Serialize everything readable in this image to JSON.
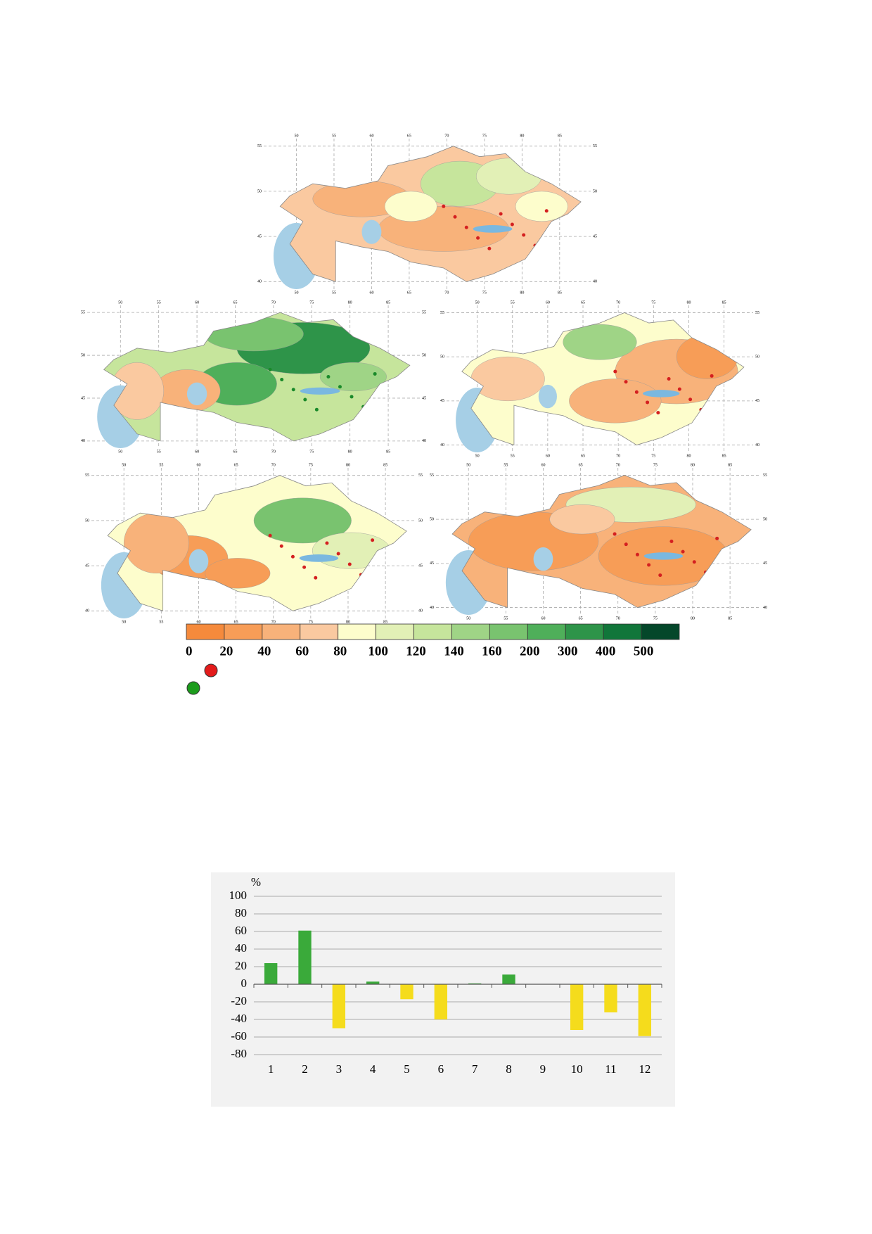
{
  "maps": {
    "grid_labels": {
      "lon": [
        "50",
        "55",
        "60",
        "65",
        "70",
        "75",
        "80",
        "85"
      ],
      "lat": [
        "55",
        "50",
        "45",
        "40"
      ]
    },
    "legend": {
      "labels": [
        "0",
        "20",
        "40",
        "60",
        "80",
        "100",
        "120",
        "140",
        "160",
        "200",
        "300",
        "400",
        "500"
      ],
      "colors": [
        "#f58a3c",
        "#f79d57",
        "#f8b27a",
        "#fac9a0",
        "#fdfdcc",
        "#e2f0b6",
        "#c6e59c",
        "#9fd486",
        "#79c36f",
        "#4faf5a",
        "#2e9449",
        "#11763a",
        "#04472a"
      ]
    }
  },
  "chart_data": {
    "type": "bar",
    "y_label": "%",
    "categories": [
      "1",
      "2",
      "3",
      "4",
      "5",
      "6",
      "7",
      "8",
      "9",
      "10",
      "11",
      "12"
    ],
    "values": [
      24,
      61,
      -50,
      3,
      -17,
      -40,
      1,
      11,
      0,
      -52,
      -32,
      -59
    ],
    "positive_color": "#3aaa3a",
    "negative_color": "#f5dc1c",
    "ylim": [
      -80,
      100
    ],
    "yticks": [
      -80,
      -60,
      -40,
      -20,
      0,
      20,
      40,
      60,
      80,
      100
    ],
    "grid": true
  }
}
